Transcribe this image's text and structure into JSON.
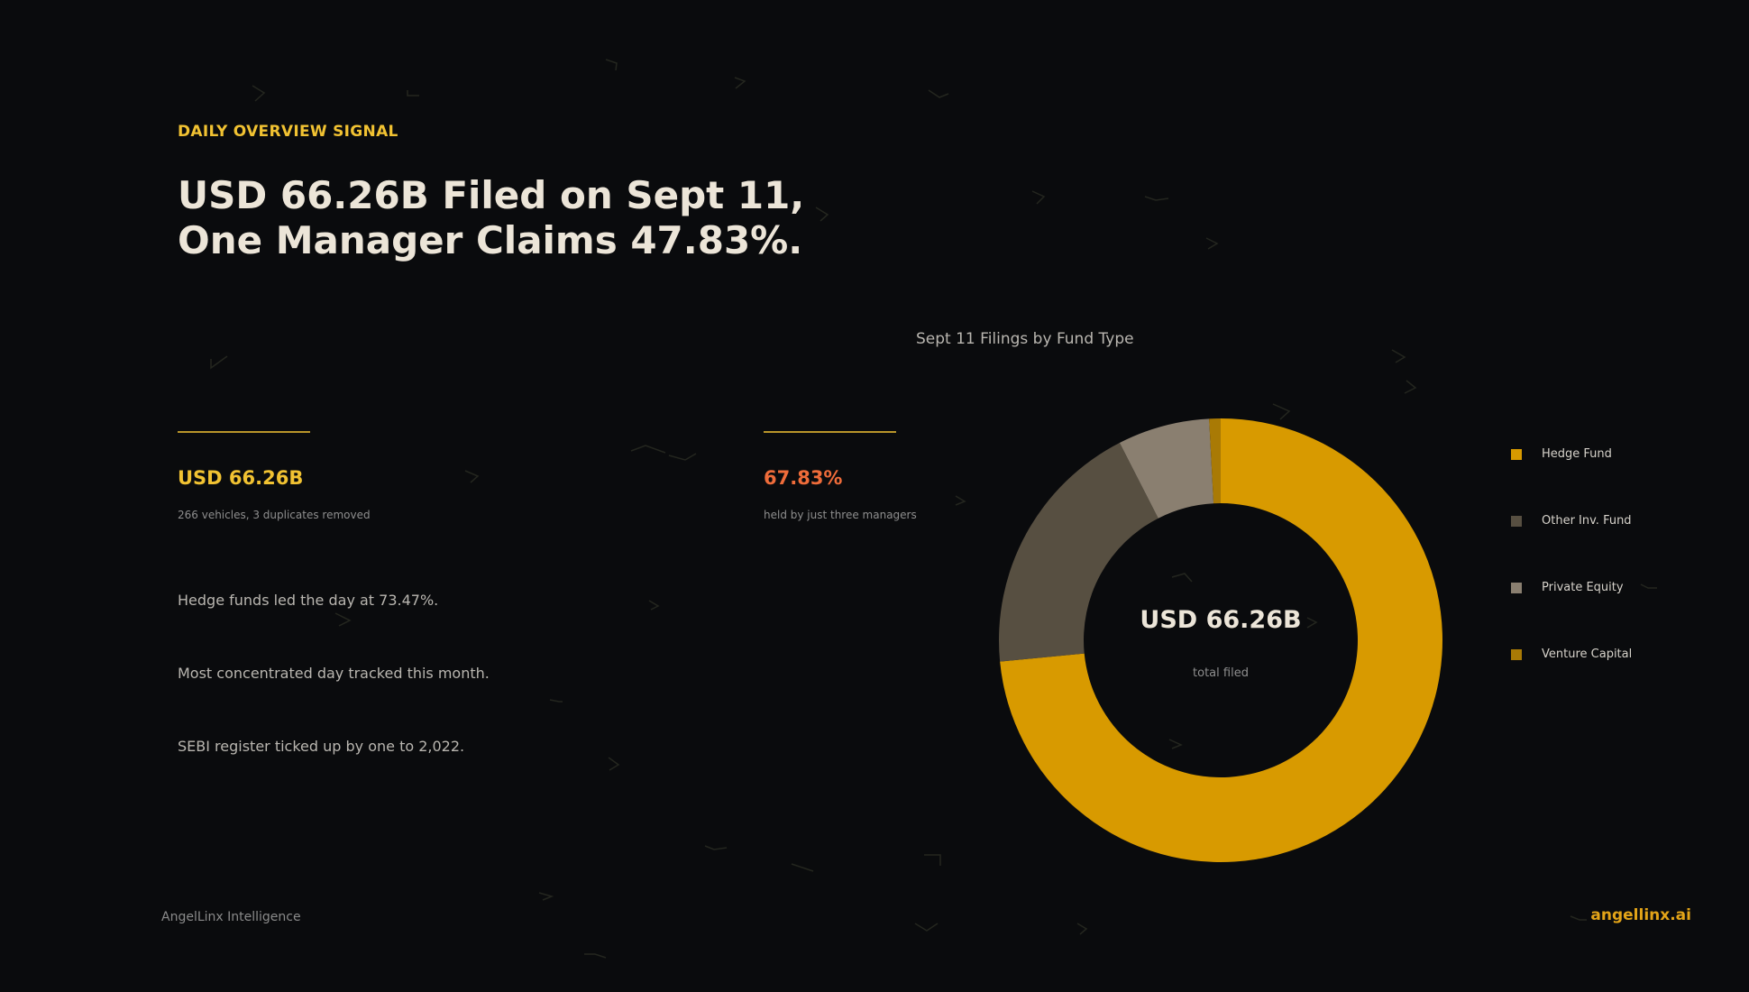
{
  "eyebrow": "DAILY OVERVIEW SIGNAL",
  "headline": {
    "line1": "USD 66.26B Filed on Sept 11,",
    "line2": "One Manager Claims 47.83%."
  },
  "stats": [
    {
      "value": "USD 66.26B",
      "note": "266 vehicles, 3 duplicates removed",
      "color": "#f1c232"
    },
    {
      "value": "67.83%",
      "note": "held by just three managers",
      "color": "#ef6c3a"
    }
  ],
  "bullets": [
    "Hedge funds led the day at 73.47%.",
    "Most concentrated day tracked this month.",
    "SEBI register ticked up by one to 2,022."
  ],
  "chart_data": {
    "type": "pie",
    "title": "Sept 11 Filings by Fund Type",
    "center_value": "USD 66.26B",
    "center_label": "total filed",
    "categories": [
      "Hedge Fund",
      "Other Inv. Fund",
      "Private Equity",
      "Venture Capital"
    ],
    "values": [
      73.47,
      19.0,
      6.7,
      0.83
    ],
    "unit": "%",
    "colors": [
      "#d89a00",
      "#574f41",
      "#8a7f70",
      "#a97a05"
    ],
    "legend_position": "right"
  },
  "footer": {
    "brand": "AngelLinx Intelligence",
    "site": "angellinx.ai"
  }
}
